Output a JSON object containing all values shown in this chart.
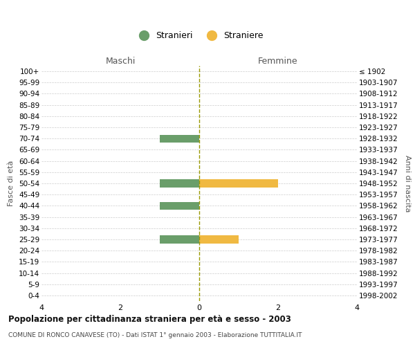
{
  "age_groups": [
    "100+",
    "95-99",
    "90-94",
    "85-89",
    "80-84",
    "75-79",
    "70-74",
    "65-69",
    "60-64",
    "55-59",
    "50-54",
    "45-49",
    "40-44",
    "35-39",
    "30-34",
    "25-29",
    "20-24",
    "15-19",
    "10-14",
    "5-9",
    "0-4"
  ],
  "birth_years": [
    "≤ 1902",
    "1903-1907",
    "1908-1912",
    "1913-1917",
    "1918-1922",
    "1923-1927",
    "1928-1932",
    "1933-1937",
    "1938-1942",
    "1943-1947",
    "1948-1952",
    "1953-1957",
    "1958-1962",
    "1963-1967",
    "1968-1972",
    "1973-1977",
    "1978-1982",
    "1983-1987",
    "1988-1992",
    "1993-1997",
    "1998-2002"
  ],
  "males": [
    0,
    0,
    0,
    0,
    0,
    0,
    1,
    0,
    0,
    0,
    1,
    0,
    1,
    0,
    0,
    1,
    0,
    0,
    0,
    0,
    0
  ],
  "females": [
    0,
    0,
    0,
    0,
    0,
    0,
    0,
    0,
    0,
    0,
    2,
    0,
    0,
    0,
    0,
    1,
    0,
    0,
    0,
    0,
    0
  ],
  "male_color": "#6a9e6a",
  "female_color": "#f0b942",
  "xlim": 4,
  "xlabel_left": "Maschi",
  "xlabel_right": "Femmine",
  "ylabel_left": "Fasce di età",
  "ylabel_right": "Anni di nascita",
  "legend_male": "Stranieri",
  "legend_female": "Straniere",
  "title": "Popolazione per cittadinanza straniera per età e sesso - 2003",
  "subtitle": "COMUNE DI RONCO CANAVESE (TO) - Dati ISTAT 1° gennaio 2003 - Elaborazione TUTTITALIA.IT",
  "grid_color": "#cccccc",
  "bg_color": "#ffffff",
  "bar_height": 0.7
}
